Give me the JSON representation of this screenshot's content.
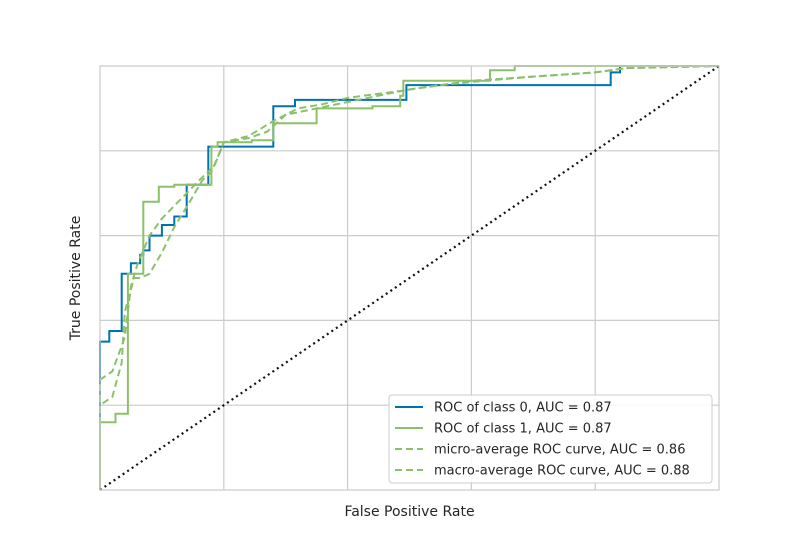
{
  "chart_data": {
    "type": "line",
    "title": "",
    "xlabel": "False Positive Rate",
    "ylabel": "True Positive Rate",
    "xlim": [
      0,
      1
    ],
    "ylim": [
      0,
      1
    ],
    "grid": true,
    "tick_labels_visible": false,
    "legend_position": "lower-right",
    "series": [
      {
        "name": "ROC of class 0, AUC = 0.87",
        "color": "#0072b2",
        "dash": "solid",
        "x": [
          0,
          0,
          0.015,
          0.015,
          0.035,
          0.035,
          0.05,
          0.05,
          0.065,
          0.065,
          0.07,
          0.07,
          0.08,
          0.08,
          0.1,
          0.1,
          0.12,
          0.12,
          0.14,
          0.14,
          0.175,
          0.175,
          0.19,
          0.19,
          0.28,
          0.28,
          0.315,
          0.315,
          0.495,
          0.495,
          0.825,
          0.825,
          0.84,
          0.84,
          1
        ],
        "y": [
          0,
          0.35,
          0.35,
          0.375,
          0.375,
          0.51,
          0.51,
          0.535,
          0.535,
          0.555,
          0.555,
          0.565,
          0.565,
          0.6,
          0.6,
          0.625,
          0.625,
          0.645,
          0.645,
          0.72,
          0.72,
          0.81,
          0.81,
          0.81,
          0.81,
          0.905,
          0.905,
          0.92,
          0.92,
          0.955,
          0.955,
          0.985,
          0.985,
          1,
          1
        ]
      },
      {
        "name": "ROC of class 1, AUC = 0.87",
        "color": "#8cc16b",
        "dash": "solid",
        "x": [
          0,
          0,
          0.025,
          0.025,
          0.045,
          0.045,
          0.05,
          0.05,
          0.07,
          0.07,
          0.095,
          0.095,
          0.12,
          0.12,
          0.18,
          0.18,
          0.19,
          0.19,
          0.245,
          0.245,
          0.28,
          0.28,
          0.35,
          0.35,
          0.44,
          0.44,
          0.485,
          0.485,
          0.49,
          0.49,
          0.63,
          0.63,
          0.67,
          0.67,
          1
        ],
        "y": [
          0,
          0.16,
          0.16,
          0.18,
          0.18,
          0.51,
          0.51,
          0.51,
          0.51,
          0.68,
          0.68,
          0.715,
          0.715,
          0.72,
          0.72,
          0.81,
          0.81,
          0.82,
          0.82,
          0.825,
          0.825,
          0.865,
          0.865,
          0.9,
          0.9,
          0.905,
          0.905,
          0.93,
          0.93,
          0.965,
          0.965,
          0.99,
          0.99,
          1,
          1
        ]
      },
      {
        "name": "micro-average ROC curve, AUC = 0.86",
        "color": "#8cc16b",
        "dash": "dashed",
        "x": [
          0,
          0,
          0.02,
          0.04,
          0.05,
          0.06,
          0.08,
          0.09,
          0.1,
          0.12,
          0.14,
          0.16,
          0.185,
          0.2,
          0.24,
          0.27,
          0.3,
          0.35,
          0.4,
          0.45,
          0.5,
          0.55,
          0.6,
          0.65,
          0.7,
          0.75,
          0.8,
          0.85,
          1
        ],
        "y": [
          0,
          0.26,
          0.28,
          0.36,
          0.48,
          0.53,
          0.6,
          0.62,
          0.64,
          0.67,
          0.7,
          0.73,
          0.765,
          0.82,
          0.83,
          0.845,
          0.885,
          0.9,
          0.915,
          0.93,
          0.945,
          0.955,
          0.965,
          0.97,
          0.975,
          0.98,
          0.985,
          0.995,
          1
        ]
      },
      {
        "name": "macro-average ROC curve, AUC = 0.88",
        "color": "#8cc16b",
        "dash": "dashed",
        "x": [
          0,
          0,
          0.02,
          0.035,
          0.04,
          0.055,
          0.065,
          0.08,
          0.1,
          0.12,
          0.145,
          0.165,
          0.18,
          0.2,
          0.24,
          0.28,
          0.32,
          0.36,
          0.4,
          0.48,
          0.55,
          0.62,
          0.7,
          0.8,
          0.85,
          1
        ],
        "y": [
          0,
          0.2,
          0.22,
          0.3,
          0.42,
          0.5,
          0.5,
          0.51,
          0.56,
          0.62,
          0.68,
          0.73,
          0.75,
          0.82,
          0.835,
          0.87,
          0.9,
          0.91,
          0.925,
          0.94,
          0.955,
          0.965,
          0.975,
          0.985,
          0.995,
          1
        ]
      }
    ],
    "reference_line": {
      "color": "#111111",
      "dash": "dotted",
      "x": [
        0,
        1
      ],
      "y": [
        0,
        1
      ]
    }
  }
}
